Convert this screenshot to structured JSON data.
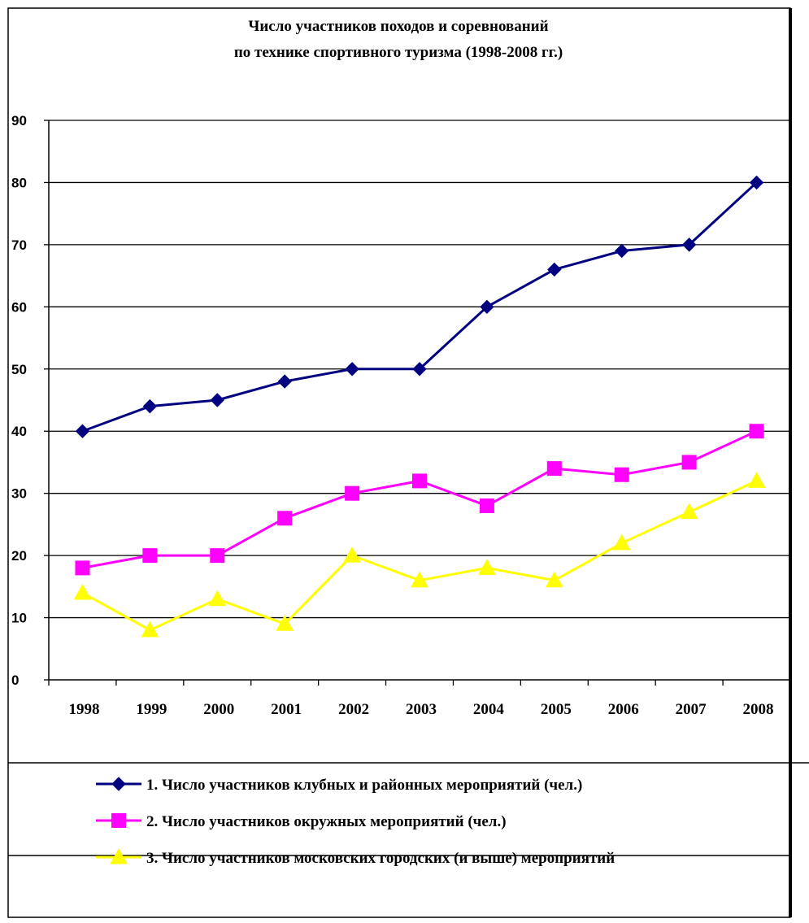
{
  "chart_data": {
    "type": "line",
    "title_lines": [
      "Число участников походов и соревнований",
      "по технике спортивного туризма (1998-2008 гг.)"
    ],
    "categories": [
      "1998",
      "1999",
      "2000",
      "2001",
      "2002",
      "2003",
      "2004",
      "2005",
      "2006",
      "2007",
      "2008"
    ],
    "ylim": [
      0,
      90
    ],
    "yticks": [
      0,
      10,
      20,
      30,
      40,
      50,
      60,
      70,
      80,
      90
    ],
    "grid": true,
    "legend_position": "bottom",
    "series": [
      {
        "name": "1. Число участников клубных и районных мероприятий (чел.)",
        "marker": "diamond",
        "color": "#000080",
        "values": [
          40,
          44,
          45,
          48,
          50,
          50,
          60,
          66,
          69,
          70,
          80
        ]
      },
      {
        "name": "2. Число участников окружных мероприятий (чел.)",
        "marker": "square",
        "color": "#FF00FF",
        "values": [
          18,
          20,
          20,
          26,
          30,
          32,
          28,
          34,
          33,
          35,
          40
        ]
      },
      {
        "name": "3. Число участников московских городских  (и выше) мероприятий",
        "marker": "triangle",
        "color": "#FFFF00",
        "values": [
          14,
          8,
          13,
          9,
          20,
          16,
          18,
          16,
          22,
          27,
          32
        ]
      }
    ]
  }
}
